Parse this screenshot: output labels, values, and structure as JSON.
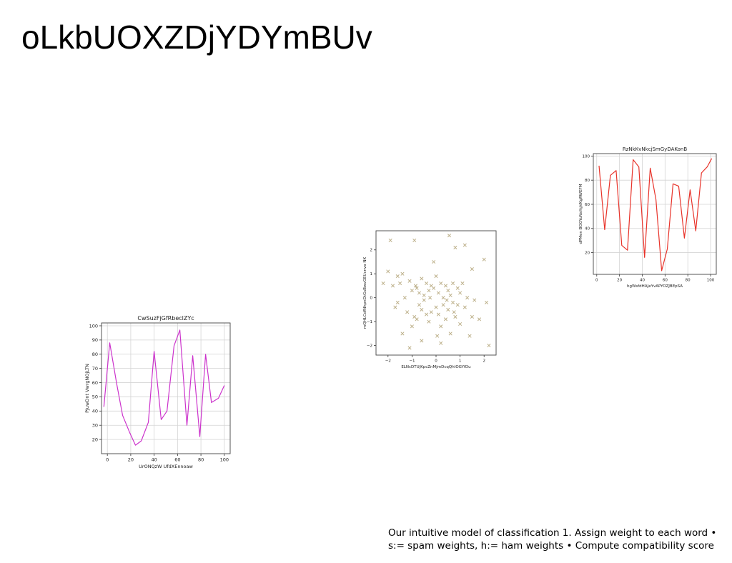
{
  "slide": {
    "title": "oLkbUOXZDjYDYmBUv",
    "caption_line1": "Our intuitive model of classification 1. Assign weight to each word •",
    "caption_line2": "s:= spam weights, h:= ham weights • Compute compatibility score"
  },
  "chart_data": [
    {
      "type": "line",
      "title": "CwSuzFjGfRbeclZYc",
      "xlabel": "UrONQzW UfdXEnnoaw",
      "ylabel": "PJuwDnt VwrgNOjLTN",
      "color": "#cc33cc",
      "xlim": [
        -5,
        105
      ],
      "ylim": [
        10,
        102
      ],
      "xticks": [
        0,
        20,
        40,
        60,
        80,
        100
      ],
      "yticks": [
        20,
        30,
        40,
        50,
        60,
        70,
        80,
        90,
        100
      ],
      "grid": true,
      "x": [
        -3,
        2,
        8,
        13,
        19,
        24,
        29,
        35,
        40,
        46,
        51,
        57,
        62,
        68,
        73,
        79,
        84,
        89,
        95,
        100
      ],
      "y": [
        43,
        88,
        59,
        37,
        25,
        16,
        19,
        32,
        82,
        34,
        40,
        86,
        97,
        30,
        79,
        22,
        80,
        46,
        49,
        58
      ]
    },
    {
      "type": "scatter",
      "title": "",
      "xlabel": "ELNcDTUjKpcZnMjmDcqQhIOGYfDu",
      "ylabel": "mQHLCdfNhpnDtGsBwvGEUcnvo NK",
      "color": "#bdb08a",
      "marker": "x",
      "xlim": [
        -2.5,
        2.5
      ],
      "ylim": [
        -2.4,
        2.8
      ],
      "xticks": [
        -2,
        -1,
        0,
        1,
        2
      ],
      "yticks": [
        -2,
        -1,
        0,
        1,
        2
      ],
      "grid": false,
      "points": [
        [
          -2.2,
          0.6
        ],
        [
          -2.0,
          1.1
        ],
        [
          -1.9,
          2.4
        ],
        [
          -1.8,
          0.5
        ],
        [
          -1.7,
          -0.4
        ],
        [
          -1.6,
          -0.2
        ],
        [
          -1.5,
          0.6
        ],
        [
          -1.4,
          1.0
        ],
        [
          -1.4,
          -1.5
        ],
        [
          -1.3,
          0.0
        ],
        [
          -1.2,
          -0.6
        ],
        [
          -1.1,
          0.7
        ],
        [
          -1.1,
          -2.1
        ],
        [
          -1.0,
          -1.2
        ],
        [
          -1.0,
          0.3
        ],
        [
          -0.9,
          -0.8
        ],
        [
          -0.9,
          2.4
        ],
        [
          -0.8,
          0.4
        ],
        [
          -0.8,
          -0.9
        ],
        [
          -0.7,
          0.2
        ],
        [
          -0.7,
          -0.3
        ],
        [
          -0.6,
          0.8
        ],
        [
          -0.6,
          -0.5
        ],
        [
          -0.5,
          0.1
        ],
        [
          -0.5,
          -0.1
        ],
        [
          -0.4,
          0.6
        ],
        [
          -0.4,
          -0.7
        ],
        [
          -0.3,
          0.3
        ],
        [
          -0.3,
          -1.0
        ],
        [
          -0.2,
          0.5
        ],
        [
          -0.2,
          -0.6
        ],
        [
          -0.1,
          1.5
        ],
        [
          -0.1,
          0.4
        ],
        [
          0.0,
          -0.4
        ],
        [
          0.0,
          0.9
        ],
        [
          0.05,
          -1.6
        ],
        [
          0.1,
          0.2
        ],
        [
          0.1,
          -0.7
        ],
        [
          0.2,
          0.6
        ],
        [
          0.2,
          -1.2
        ],
        [
          0.3,
          -0.3
        ],
        [
          0.3,
          0.0
        ],
        [
          0.4,
          0.5
        ],
        [
          0.4,
          -0.9
        ],
        [
          0.5,
          -0.5
        ],
        [
          0.5,
          0.3
        ],
        [
          0.55,
          2.6
        ],
        [
          0.6,
          -1.5
        ],
        [
          0.6,
          0.1
        ],
        [
          0.7,
          -0.2
        ],
        [
          0.7,
          0.6
        ],
        [
          0.8,
          2.1
        ],
        [
          0.8,
          -0.8
        ],
        [
          0.9,
          0.4
        ],
        [
          0.9,
          -0.3
        ],
        [
          1.0,
          0.2
        ],
        [
          1.0,
          -1.1
        ],
        [
          1.1,
          0.6
        ],
        [
          1.2,
          -0.4
        ],
        [
          1.2,
          2.2
        ],
        [
          1.3,
          0.0
        ],
        [
          1.4,
          -1.6
        ],
        [
          1.5,
          1.2
        ],
        [
          1.5,
          -0.8
        ],
        [
          1.6,
          -0.1
        ],
        [
          1.8,
          -0.9
        ],
        [
          2.0,
          1.6
        ],
        [
          2.1,
          -0.2
        ],
        [
          2.2,
          -2.0
        ],
        [
          -0.6,
          -1.8
        ],
        [
          0.2,
          -1.9
        ],
        [
          -1.6,
          0.9
        ],
        [
          0.45,
          -0.1
        ],
        [
          -0.25,
          0.0
        ],
        [
          0.75,
          -0.6
        ],
        [
          -0.85,
          0.5
        ]
      ]
    },
    {
      "type": "line",
      "title": "RzNkKvNkcjSmGyDAKonB",
      "xlabel": "hgWsfdHAJeYvAPYOZJBEpSA",
      "ylabel": "dPMen BOGYuNaYgVKgRWEFM",
      "color": "#e8332a",
      "xlim": [
        -3,
        105
      ],
      "ylim": [
        2,
        102
      ],
      "xticks": [
        0,
        20,
        40,
        60,
        80,
        100
      ],
      "yticks": [
        20,
        40,
        60,
        80,
        100
      ],
      "grid": true,
      "x": [
        2,
        7,
        12,
        17,
        22,
        27,
        32,
        37,
        42,
        47,
        52,
        57,
        62,
        67,
        72,
        77,
        82,
        87,
        92,
        97,
        101
      ],
      "y": [
        92,
        39,
        84,
        88,
        26,
        22,
        97,
        91,
        16,
        90,
        64,
        5,
        23,
        77,
        75,
        32,
        72,
        38,
        86,
        91,
        98
      ]
    }
  ]
}
